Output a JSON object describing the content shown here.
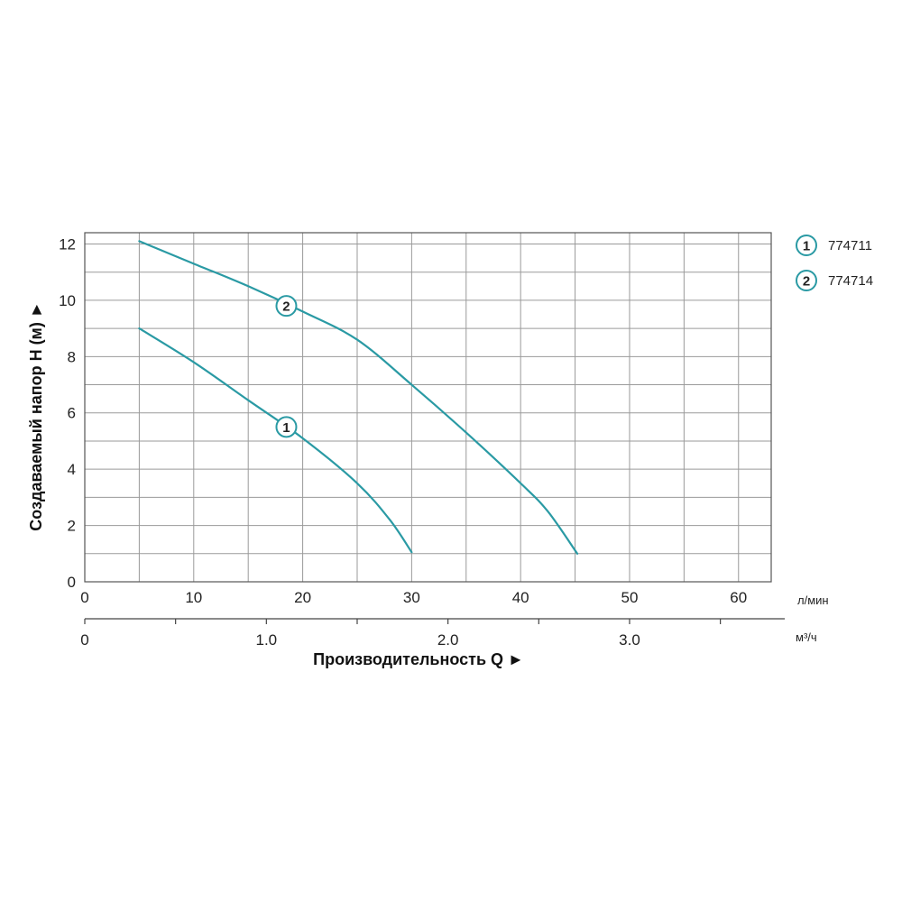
{
  "chart_data": {
    "type": "line",
    "xlabel": "Производительность Q ►",
    "ylabel": "Создаваемый напор H (м) ►",
    "x_unit": "л/мин",
    "x2_unit": "м³/ч",
    "xlim": [
      0,
      63
    ],
    "ylim": [
      0,
      12.4
    ],
    "x_ticks": [
      0,
      10,
      20,
      30,
      40,
      50,
      60
    ],
    "x_tick_labels": [
      "0",
      "10",
      "20",
      "30",
      "40",
      "50",
      "60"
    ],
    "x2_ticks": [
      0,
      1.0,
      2.0,
      3.0
    ],
    "x2_tick_labels": [
      "0",
      "1.0",
      "2.0",
      "3.0"
    ],
    "y_ticks": [
      0,
      2,
      4,
      6,
      8,
      10,
      12
    ],
    "y_tick_labels": [
      "0",
      "2",
      "4",
      "6",
      "8",
      "10",
      "12"
    ],
    "grid": true,
    "legend_position": "top-right",
    "series_color": "#2a9aa4",
    "series": [
      {
        "name": "774711",
        "marker_label": "1",
        "marker_at": [
          18.5,
          5.5
        ],
        "x": [
          5,
          10,
          15,
          20,
          25,
          28,
          30
        ],
        "y": [
          9.0,
          7.8,
          6.45,
          5.1,
          3.5,
          2.2,
          1.05
        ]
      },
      {
        "name": "774714",
        "marker_label": "2",
        "marker_at": [
          18.5,
          9.8
        ],
        "x": [
          5,
          10,
          15,
          20,
          25,
          30,
          35,
          40,
          42.5,
          45.2
        ],
        "y": [
          12.1,
          11.3,
          10.5,
          9.6,
          8.6,
          7.0,
          5.3,
          3.5,
          2.5,
          1.0
        ]
      }
    ]
  }
}
